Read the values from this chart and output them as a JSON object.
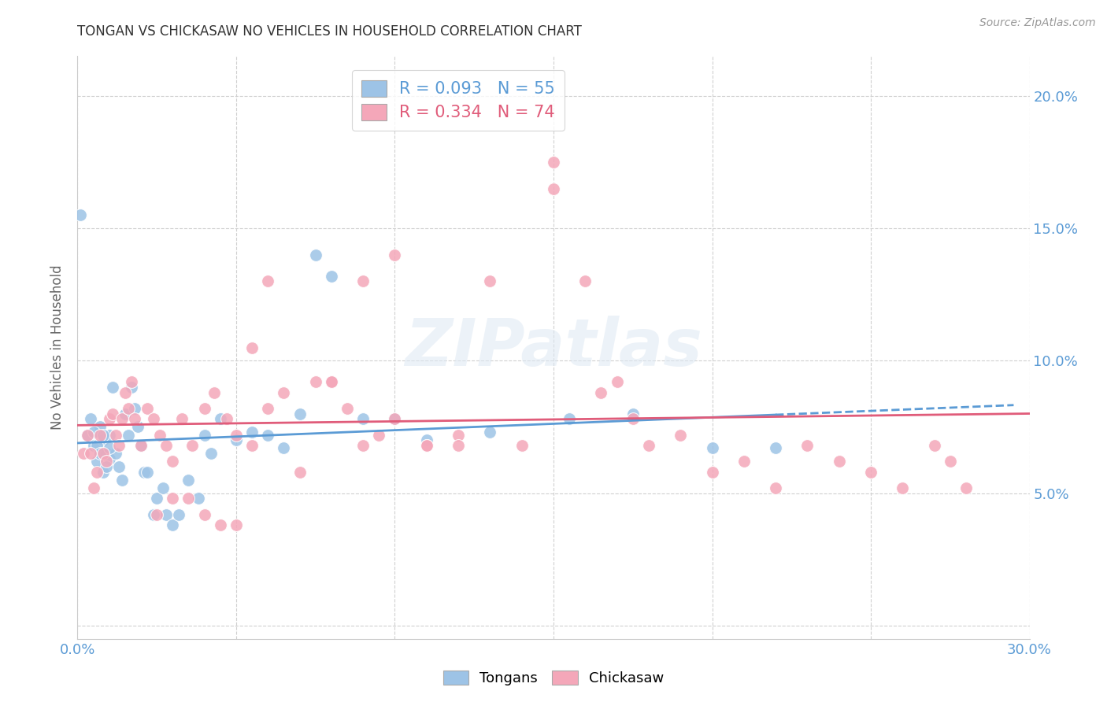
{
  "title": "TONGAN VS CHICKASAW NO VEHICLES IN HOUSEHOLD CORRELATION CHART",
  "source": "Source: ZipAtlas.com",
  "ylabel": "No Vehicles in Household",
  "xlim": [
    0.0,
    0.3
  ],
  "ylim": [
    -0.005,
    0.215
  ],
  "xticks": [
    0.0,
    0.05,
    0.1,
    0.15,
    0.2,
    0.25,
    0.3
  ],
  "yticks": [
    0.0,
    0.05,
    0.1,
    0.15,
    0.2
  ],
  "ytick_labels_right": [
    "",
    "5.0%",
    "10.0%",
    "15.0%",
    "20.0%"
  ],
  "xtick_labels": [
    "0.0%",
    "",
    "",
    "",
    "",
    "",
    "30.0%"
  ],
  "axis_color": "#5b9bd5",
  "grid_color": "#d0d0d0",
  "background_color": "#ffffff",
  "tongan_color": "#9dc3e6",
  "chickasaw_color": "#f4a7b9",
  "tongan_line_color": "#5b9bd5",
  "chickasaw_line_color": "#e05c7a",
  "tongan_R": 0.093,
  "tongan_N": 55,
  "chickasaw_R": 0.334,
  "chickasaw_N": 74,
  "tongan_scatter_x": [
    0.001,
    0.003,
    0.004,
    0.005,
    0.006,
    0.007,
    0.008,
    0.008,
    0.009,
    0.01,
    0.01,
    0.011,
    0.012,
    0.013,
    0.014,
    0.015,
    0.016,
    0.017,
    0.018,
    0.019,
    0.02,
    0.021,
    0.022,
    0.024,
    0.025,
    0.027,
    0.028,
    0.03,
    0.032,
    0.035,
    0.038,
    0.04,
    0.042,
    0.045,
    0.05,
    0.055,
    0.06,
    0.065,
    0.07,
    0.075,
    0.08,
    0.09,
    0.1,
    0.11,
    0.13,
    0.155,
    0.175,
    0.2,
    0.22,
    0.005,
    0.006,
    0.007,
    0.008,
    0.009,
    0.01
  ],
  "tongan_scatter_y": [
    0.155,
    0.072,
    0.078,
    0.068,
    0.062,
    0.075,
    0.07,
    0.058,
    0.065,
    0.072,
    0.063,
    0.09,
    0.065,
    0.06,
    0.055,
    0.08,
    0.072,
    0.09,
    0.082,
    0.075,
    0.068,
    0.058,
    0.058,
    0.042,
    0.048,
    0.052,
    0.042,
    0.038,
    0.042,
    0.055,
    0.048,
    0.072,
    0.065,
    0.078,
    0.07,
    0.073,
    0.072,
    0.067,
    0.08,
    0.14,
    0.132,
    0.078,
    0.078,
    0.07,
    0.073,
    0.078,
    0.08,
    0.067,
    0.067,
    0.073,
    0.068,
    0.065,
    0.072,
    0.06,
    0.067
  ],
  "chickasaw_scatter_x": [
    0.002,
    0.003,
    0.004,
    0.005,
    0.006,
    0.007,
    0.008,
    0.009,
    0.01,
    0.011,
    0.012,
    0.013,
    0.014,
    0.015,
    0.016,
    0.017,
    0.018,
    0.02,
    0.022,
    0.024,
    0.026,
    0.028,
    0.03,
    0.033,
    0.036,
    0.04,
    0.043,
    0.047,
    0.05,
    0.055,
    0.06,
    0.065,
    0.07,
    0.075,
    0.08,
    0.085,
    0.09,
    0.095,
    0.1,
    0.11,
    0.12,
    0.13,
    0.14,
    0.15,
    0.16,
    0.165,
    0.17,
    0.175,
    0.18,
    0.19,
    0.2,
    0.21,
    0.22,
    0.23,
    0.24,
    0.25,
    0.26,
    0.27,
    0.275,
    0.28,
    0.15,
    0.1,
    0.11,
    0.055,
    0.035,
    0.04,
    0.045,
    0.05,
    0.025,
    0.03,
    0.06,
    0.08,
    0.09,
    0.12
  ],
  "chickasaw_scatter_y": [
    0.065,
    0.072,
    0.065,
    0.052,
    0.058,
    0.072,
    0.065,
    0.062,
    0.078,
    0.08,
    0.072,
    0.068,
    0.078,
    0.088,
    0.082,
    0.092,
    0.078,
    0.068,
    0.082,
    0.078,
    0.072,
    0.068,
    0.062,
    0.078,
    0.068,
    0.082,
    0.088,
    0.078,
    0.072,
    0.068,
    0.082,
    0.088,
    0.058,
    0.092,
    0.092,
    0.082,
    0.068,
    0.072,
    0.078,
    0.068,
    0.072,
    0.13,
    0.068,
    0.175,
    0.13,
    0.088,
    0.092,
    0.078,
    0.068,
    0.072,
    0.058,
    0.062,
    0.052,
    0.068,
    0.062,
    0.058,
    0.052,
    0.068,
    0.062,
    0.052,
    0.165,
    0.14,
    0.068,
    0.105,
    0.048,
    0.042,
    0.038,
    0.038,
    0.042,
    0.048,
    0.13,
    0.092,
    0.13,
    0.068
  ]
}
